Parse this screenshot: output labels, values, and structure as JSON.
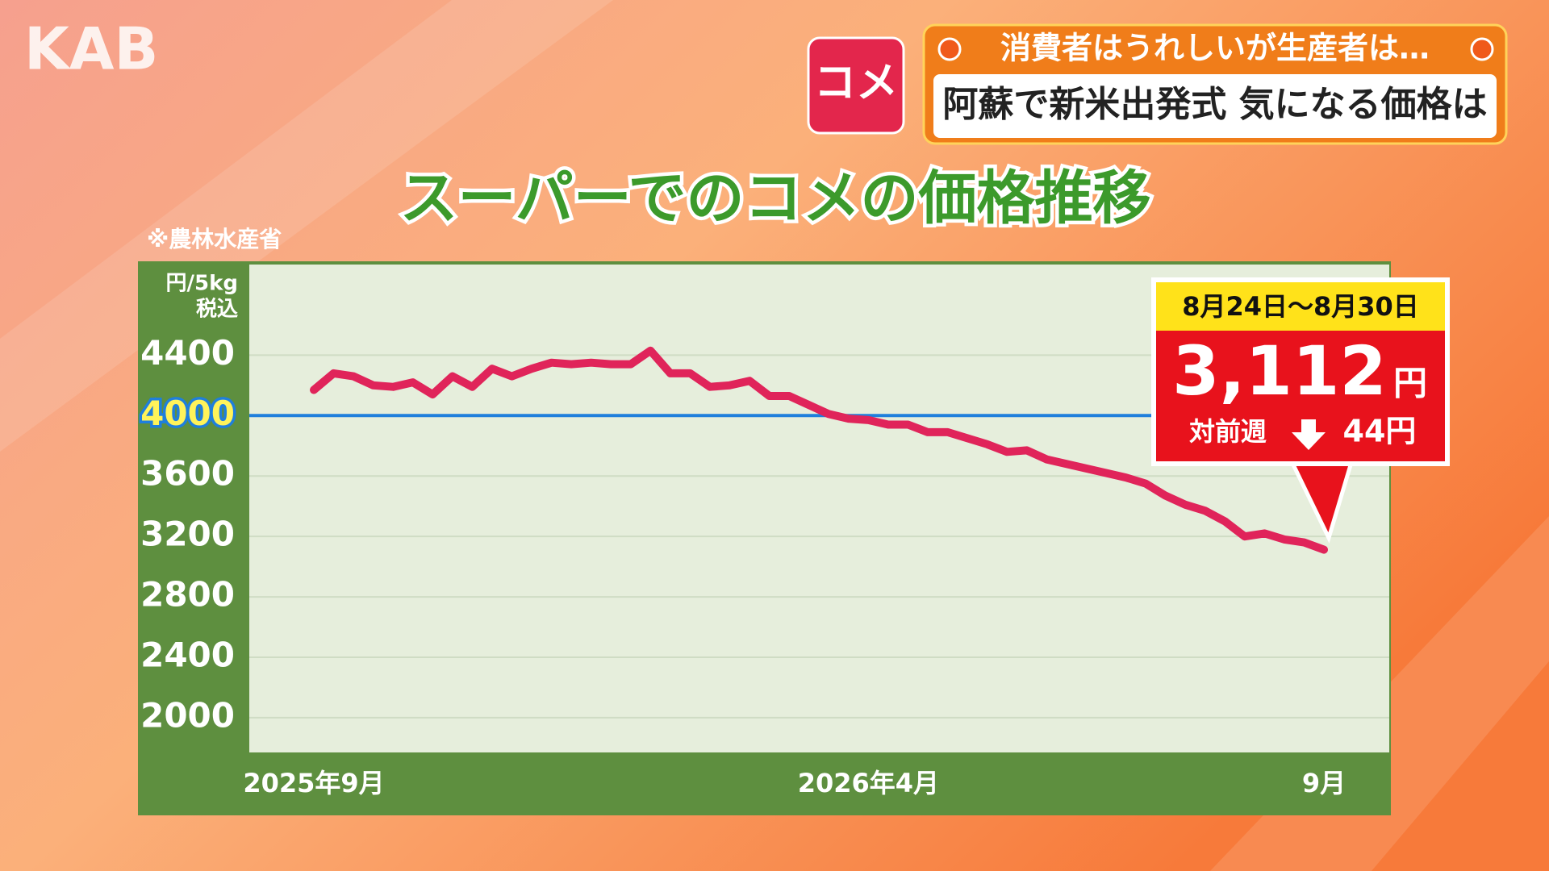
{
  "logo": "KAB",
  "tag": "コメ",
  "headline_top": "消費者はうれしいが生産者は…",
  "headline_main": "阿蘇で新米出発式 気になる価格は",
  "chart_data": {
    "type": "line",
    "title": "スーパーでのコメの価格推移",
    "source": "※農林水産省",
    "y_unit": "円/5kg",
    "y_unit_note": "税込",
    "categories": [
      "2025年9月",
      null,
      null,
      null,
      null,
      null,
      null,
      null,
      null,
      null,
      null,
      null,
      null,
      null,
      null,
      null,
      null,
      null,
      null,
      null,
      null,
      null,
      null,
      null,
      null,
      null,
      null,
      null,
      "2026年4月",
      null,
      null,
      null,
      null,
      null,
      null,
      null,
      null,
      null,
      null,
      null,
      null,
      null,
      null,
      null,
      null,
      null,
      null,
      null,
      null,
      null,
      null,
      "9月"
    ],
    "values": [
      4170,
      4280,
      4260,
      4200,
      4190,
      4220,
      4140,
      4260,
      4190,
      4310,
      4260,
      4310,
      4350,
      4340,
      4350,
      4340,
      4340,
      4430,
      4280,
      4280,
      4190,
      4200,
      4230,
      4130,
      4130,
      4070,
      4010,
      3980,
      3970,
      3940,
      3940,
      3890,
      3890,
      3850,
      3810,
      3760,
      3770,
      3710,
      3680,
      3650,
      3620,
      3590,
      3550,
      3470,
      3410,
      3370,
      3300,
      3200,
      3220,
      3180,
      3160,
      3112
    ],
    "value_labels": [
      null,
      null,
      null,
      null,
      null,
      null,
      null,
      null,
      null,
      null,
      null,
      null,
      null,
      null,
      null,
      null,
      null,
      null,
      null,
      null,
      null,
      null,
      null,
      null,
      null,
      null,
      null,
      null,
      null,
      null,
      null,
      null,
      null,
      null,
      null,
      null,
      null,
      null,
      null,
      null,
      null,
      null,
      null,
      null,
      null,
      null,
      null,
      null,
      null,
      null,
      null,
      "3,112"
    ],
    "color": "#e0245a",
    "ylim": [
      1770,
      5000
    ],
    "yticks": [
      2000,
      2400,
      2800,
      3200,
      3600,
      4000,
      4400
    ],
    "grid": true,
    "highlight_tick": 4000,
    "highlight_color": "#1f7fdc",
    "callout": {
      "period": "8月24日～8月30日",
      "unit": "円",
      "change_prefix": "対前週",
      "change": "44円"
    }
  }
}
